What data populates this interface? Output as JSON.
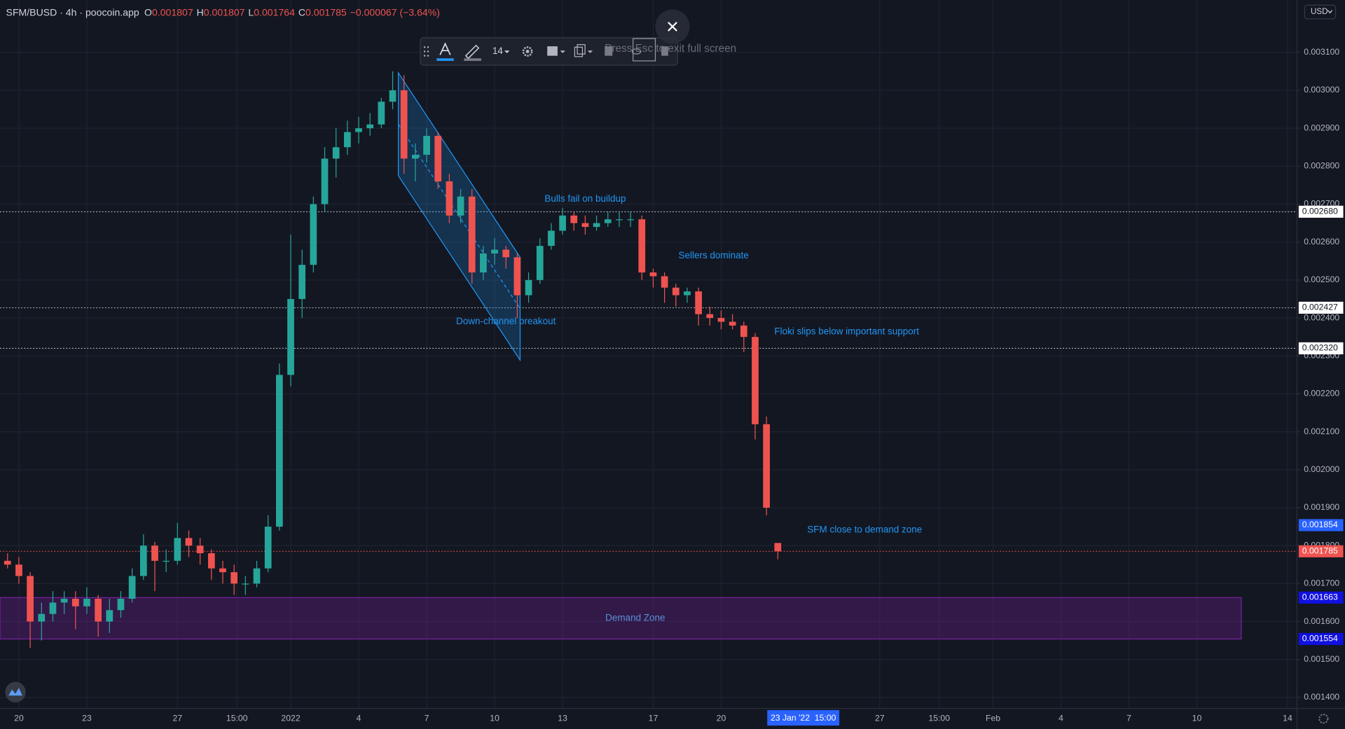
{
  "chart_data": {
    "type": "candlestick",
    "title": "SFM/BUSD · 4h · poocoin.app",
    "legend_values": [
      {
        "key": "O",
        "value": 0.001807
      },
      {
        "key": "H",
        "value": 0.001807
      },
      {
        "key": "L",
        "value": 0.001764
      },
      {
        "key": "C",
        "value": 0.001785
      }
    ],
    "change": "−0.000067 (−3.64%)",
    "up_color": "#26a69a",
    "down_color": "#ef5350",
    "grid": true,
    "xlim": [
      "2021-12-19T04:00",
      "2022-02-14T10:00"
    ],
    "ylim": [
      0.001371,
      0.003238
    ],
    "xticks": [
      {
        "value": "2021-12-20T00:00",
        "label": "20"
      },
      {
        "value": "2021-12-23T00:00",
        "label": "23"
      },
      {
        "value": "2021-12-27T00:00",
        "label": "27"
      },
      {
        "value": "2021-12-29T15:00",
        "label": "15:00"
      },
      {
        "value": "2022-01-01T00:00",
        "label": "2022"
      },
      {
        "value": "2022-01-04T00:00",
        "label": "4"
      },
      {
        "value": "2022-01-07T00:00",
        "label": "7"
      },
      {
        "value": "2022-01-10T00:00",
        "label": "10"
      },
      {
        "value": "2022-01-13T00:00",
        "label": "13"
      },
      {
        "value": "2022-01-17T00:00",
        "label": "17"
      },
      {
        "value": "2022-01-20T00:00",
        "label": "20"
      },
      {
        "value": "2022-01-27T00:00",
        "label": "27"
      },
      {
        "value": "2022-01-29T15:00",
        "label": "15:00"
      },
      {
        "value": "2022-02-01T00:00",
        "label": "Feb"
      },
      {
        "value": "2022-02-04T00:00",
        "label": "4"
      },
      {
        "value": "2022-02-07T00:00",
        "label": "7"
      },
      {
        "value": "2022-02-10T00:00",
        "label": "10"
      },
      {
        "value": "2022-02-14T00:00",
        "label": "14"
      }
    ],
    "yticks": [
      {
        "value": 0.0014,
        "label": "0.001400"
      },
      {
        "value": 0.0015,
        "label": "0.001500"
      },
      {
        "value": 0.0016,
        "label": "0.001600"
      },
      {
        "value": 0.0017,
        "label": "0.001700"
      },
      {
        "value": 0.0018,
        "label": "0.001800"
      },
      {
        "value": 0.0019,
        "label": "0.001900"
      },
      {
        "value": 0.002,
        "label": "0.002000"
      },
      {
        "value": 0.0021,
        "label": "0.002100"
      },
      {
        "value": 0.0022,
        "label": "0.002200"
      },
      {
        "value": 0.0023,
        "label": "0.002300"
      },
      {
        "value": 0.0024,
        "label": "0.002400"
      },
      {
        "value": 0.0025,
        "label": "0.002500"
      },
      {
        "value": 0.0026,
        "label": "0.002600"
      },
      {
        "value": 0.0027,
        "label": "0.002700"
      },
      {
        "value": 0.0028,
        "label": "0.002800"
      },
      {
        "value": 0.0029,
        "label": "0.002900"
      },
      {
        "value": 0.003,
        "label": "0.003000"
      },
      {
        "value": 0.0031,
        "label": "0.003100"
      }
    ],
    "x": [
      "2021-12-19T12:00",
      "2021-12-20T00:00",
      "2021-12-20T12:00",
      "2021-12-21T00:00",
      "2021-12-21T12:00",
      "2021-12-22T00:00",
      "2021-12-22T12:00",
      "2021-12-23T00:00",
      "2021-12-23T12:00",
      "2021-12-24T00:00",
      "2021-12-24T12:00",
      "2021-12-25T00:00",
      "2021-12-25T12:00",
      "2021-12-26T00:00",
      "2021-12-26T12:00",
      "2021-12-27T00:00",
      "2021-12-27T12:00",
      "2021-12-28T00:00",
      "2021-12-28T12:00",
      "2021-12-29T00:00",
      "2021-12-29T12:00",
      "2021-12-30T00:00",
      "2021-12-30T12:00",
      "2021-12-31T00:00",
      "2021-12-31T12:00",
      "2022-01-01T00:00",
      "2022-01-01T12:00",
      "2022-01-02T00:00",
      "2022-01-02T12:00",
      "2022-01-03T00:00",
      "2022-01-03T12:00",
      "2022-01-04T00:00",
      "2022-01-04T12:00",
      "2022-01-05T00:00",
      "2022-01-05T12:00",
      "2022-01-06T00:00",
      "2022-01-06T12:00",
      "2022-01-07T00:00",
      "2022-01-07T12:00",
      "2022-01-08T00:00",
      "2022-01-08T12:00",
      "2022-01-09T00:00",
      "2022-01-09T12:00",
      "2022-01-10T00:00",
      "2022-01-10T12:00",
      "2022-01-11T00:00",
      "2022-01-11T12:00",
      "2022-01-12T00:00",
      "2022-01-12T12:00",
      "2022-01-13T00:00",
      "2022-01-13T12:00",
      "2022-01-14T00:00",
      "2022-01-14T12:00",
      "2022-01-15T00:00",
      "2022-01-15T12:00",
      "2022-01-16T00:00",
      "2022-01-16T12:00",
      "2022-01-17T00:00",
      "2022-01-17T12:00",
      "2022-01-18T00:00",
      "2022-01-18T12:00",
      "2022-01-19T00:00",
      "2022-01-19T12:00",
      "2022-01-20T00:00",
      "2022-01-20T12:00",
      "2022-01-21T00:00",
      "2022-01-21T12:00",
      "2022-01-22T00:00",
      "2022-01-22T12:00"
    ],
    "ohlc": [
      [
        0.00176,
        0.00178,
        0.00174,
        0.00175
      ],
      [
        0.00175,
        0.00177,
        0.0017,
        0.00172
      ],
      [
        0.00172,
        0.00173,
        0.00153,
        0.0016
      ],
      [
        0.0016,
        0.00165,
        0.00155,
        0.00162
      ],
      [
        0.00162,
        0.00168,
        0.0016,
        0.00165
      ],
      [
        0.00165,
        0.00168,
        0.00162,
        0.00166
      ],
      [
        0.00166,
        0.00168,
        0.00158,
        0.00164
      ],
      [
        0.00164,
        0.00169,
        0.00162,
        0.00166
      ],
      [
        0.00166,
        0.00167,
        0.00156,
        0.0016
      ],
      [
        0.0016,
        0.00166,
        0.00157,
        0.00163
      ],
      [
        0.00163,
        0.00168,
        0.00161,
        0.00166
      ],
      [
        0.00166,
        0.00174,
        0.00165,
        0.00172
      ],
      [
        0.00172,
        0.00183,
        0.00171,
        0.0018
      ],
      [
        0.0018,
        0.00181,
        0.00168,
        0.00176
      ],
      [
        0.00176,
        0.00179,
        0.00173,
        0.00176
      ],
      [
        0.00176,
        0.00186,
        0.00175,
        0.00182
      ],
      [
        0.00182,
        0.00184,
        0.00177,
        0.0018
      ],
      [
        0.0018,
        0.00182,
        0.00175,
        0.00178
      ],
      [
        0.00178,
        0.00179,
        0.00171,
        0.00174
      ],
      [
        0.00174,
        0.00176,
        0.0017,
        0.00173
      ],
      [
        0.00173,
        0.00175,
        0.00167,
        0.0017
      ],
      [
        0.0017,
        0.00172,
        0.00167,
        0.0017
      ],
      [
        0.0017,
        0.00176,
        0.00169,
        0.00174
      ],
      [
        0.00174,
        0.00188,
        0.00173,
        0.00185
      ],
      [
        0.00185,
        0.00228,
        0.00184,
        0.00225
      ],
      [
        0.00225,
        0.00262,
        0.00222,
        0.00245
      ],
      [
        0.00245,
        0.00258,
        0.0024,
        0.00254
      ],
      [
        0.00254,
        0.00272,
        0.00252,
        0.0027
      ],
      [
        0.0027,
        0.00285,
        0.00268,
        0.00282
      ],
      [
        0.00282,
        0.0029,
        0.00277,
        0.00285
      ],
      [
        0.00285,
        0.00292,
        0.00283,
        0.00289
      ],
      [
        0.00289,
        0.00293,
        0.00286,
        0.0029
      ],
      [
        0.0029,
        0.00294,
        0.00288,
        0.00291
      ],
      [
        0.00291,
        0.00298,
        0.0029,
        0.00297
      ],
      [
        0.00297,
        0.00305,
        0.00295,
        0.003
      ],
      [
        0.003,
        0.00304,
        0.00278,
        0.00282
      ],
      [
        0.00282,
        0.00286,
        0.00276,
        0.00283
      ],
      [
        0.00283,
        0.0029,
        0.00281,
        0.00288
      ],
      [
        0.00288,
        0.00289,
        0.00274,
        0.00276
      ],
      [
        0.00276,
        0.00278,
        0.00265,
        0.00267
      ],
      [
        0.00267,
        0.00274,
        0.00265,
        0.00272
      ],
      [
        0.00272,
        0.00274,
        0.00249,
        0.00252
      ],
      [
        0.00252,
        0.00259,
        0.0025,
        0.00257
      ],
      [
        0.00257,
        0.00261,
        0.00254,
        0.00258
      ],
      [
        0.00258,
        0.00259,
        0.00253,
        0.00256
      ],
      [
        0.00256,
        0.00257,
        0.0024,
        0.00246
      ],
      [
        0.00246,
        0.00252,
        0.00244,
        0.0025
      ],
      [
        0.0025,
        0.00261,
        0.00249,
        0.00259
      ],
      [
        0.00259,
        0.00265,
        0.00258,
        0.00263
      ],
      [
        0.00263,
        0.00269,
        0.00262,
        0.00267
      ],
      [
        0.00267,
        0.00268,
        0.00263,
        0.00265
      ],
      [
        0.00265,
        0.00267,
        0.00262,
        0.00264
      ],
      [
        0.00264,
        0.00267,
        0.00263,
        0.00265
      ],
      [
        0.00265,
        0.00268,
        0.00264,
        0.00266
      ],
      [
        0.00266,
        0.00268,
        0.00264,
        0.00266
      ],
      [
        0.00266,
        0.00268,
        0.00264,
        0.00266
      ],
      [
        0.00266,
        0.00267,
        0.0025,
        0.00252
      ],
      [
        0.00252,
        0.00253,
        0.00248,
        0.00251
      ],
      [
        0.00251,
        0.00252,
        0.00244,
        0.00248
      ],
      [
        0.00248,
        0.00249,
        0.00243,
        0.00246
      ],
      [
        0.00246,
        0.00248,
        0.00244,
        0.00247
      ],
      [
        0.00247,
        0.00248,
        0.00238,
        0.00241
      ],
      [
        0.00241,
        0.00243,
        0.00238,
        0.0024
      ],
      [
        0.0024,
        0.00242,
        0.00237,
        0.00239
      ],
      [
        0.00239,
        0.00241,
        0.00237,
        0.00238
      ],
      [
        0.00238,
        0.00239,
        0.00231,
        0.00235
      ],
      [
        0.00235,
        0.00236,
        0.00208,
        0.00212
      ],
      [
        0.00212,
        0.00214,
        0.00188,
        0.0019
      ],
      [
        0.001807,
        0.001807,
        0.001764,
        0.001785
      ]
    ],
    "price_lines": [
      {
        "value": 0.00268,
        "label": "0.002680",
        "line": true,
        "line_color": "#d1d4dc",
        "badge_color": "#ffffff",
        "text_color": "#131722"
      },
      {
        "value": 0.002427,
        "label": "0.002427",
        "line": true,
        "line_color": "#d1d4dc",
        "badge_color": "#ffffff",
        "text_color": "#131722"
      },
      {
        "value": 0.00232,
        "label": "0.002320",
        "line": true,
        "line_color": "#d1d4dc",
        "badge_color": "#ffffff",
        "text_color": "#131722"
      },
      {
        "value": 0.001854,
        "label": "0.001854",
        "line": false,
        "line_color": "#2962ff",
        "badge_color": "#2962ff",
        "text_color": "#ffffff"
      },
      {
        "value": 0.001785,
        "label": "0.001785",
        "line": true,
        "line_color": "#ef5350",
        "badge_color": "#ef5350",
        "text_color": "#ffffff"
      },
      {
        "value": 0.001663,
        "label": "0.001663",
        "line": false,
        "line_color": "#1010e0",
        "badge_color": "#1010e0",
        "text_color": "#ffffff"
      },
      {
        "value": 0.001554,
        "label": "0.001554",
        "line": false,
        "line_color": "#1010e0",
        "badge_color": "#1010e0",
        "text_color": "#ffffff"
      }
    ],
    "zone": {
      "label": "Demand Zone",
      "top": 0.001663,
      "bottom": 0.001554,
      "x_range": [
        "2021-12-19T04:00",
        "2022-02-11T23:00"
      ],
      "label_x": "2022-01-16T05:00",
      "color": "#7b1fa2"
    },
    "channel": {
      "start": "2022-01-05T18:00",
      "end": "2022-01-11T03:00",
      "upper": [
        0.003046,
        0.00256
      ],
      "lower": [
        0.002775,
        0.002289
      ],
      "color": "#2196f3"
    },
    "annotations": [
      {
        "text": "Bulls fail on buildup",
        "x": "2022-01-14T00:00",
        "y": 0.002713
      },
      {
        "text": "Sellers dominate",
        "x": "2022-01-19T16:00",
        "y": 0.002564
      },
      {
        "text": "Down-channel breakout",
        "x": "2022-01-10T12:00",
        "y": 0.00239
      },
      {
        "text": "Floki slips below important support",
        "x": "2022-01-25T13:00",
        "y": 0.002363
      },
      {
        "text": "SFM close to demand zone",
        "x": "2022-01-26T08:00",
        "y": 0.001841
      }
    ],
    "crosshair": {
      "x": "2022-01-23T15:00",
      "label": "23 Jan '22  15:00"
    }
  },
  "ui": {
    "font_size": "14",
    "fullscreen_hint": "Press Esc to exit full screen",
    "currency": "USD"
  }
}
